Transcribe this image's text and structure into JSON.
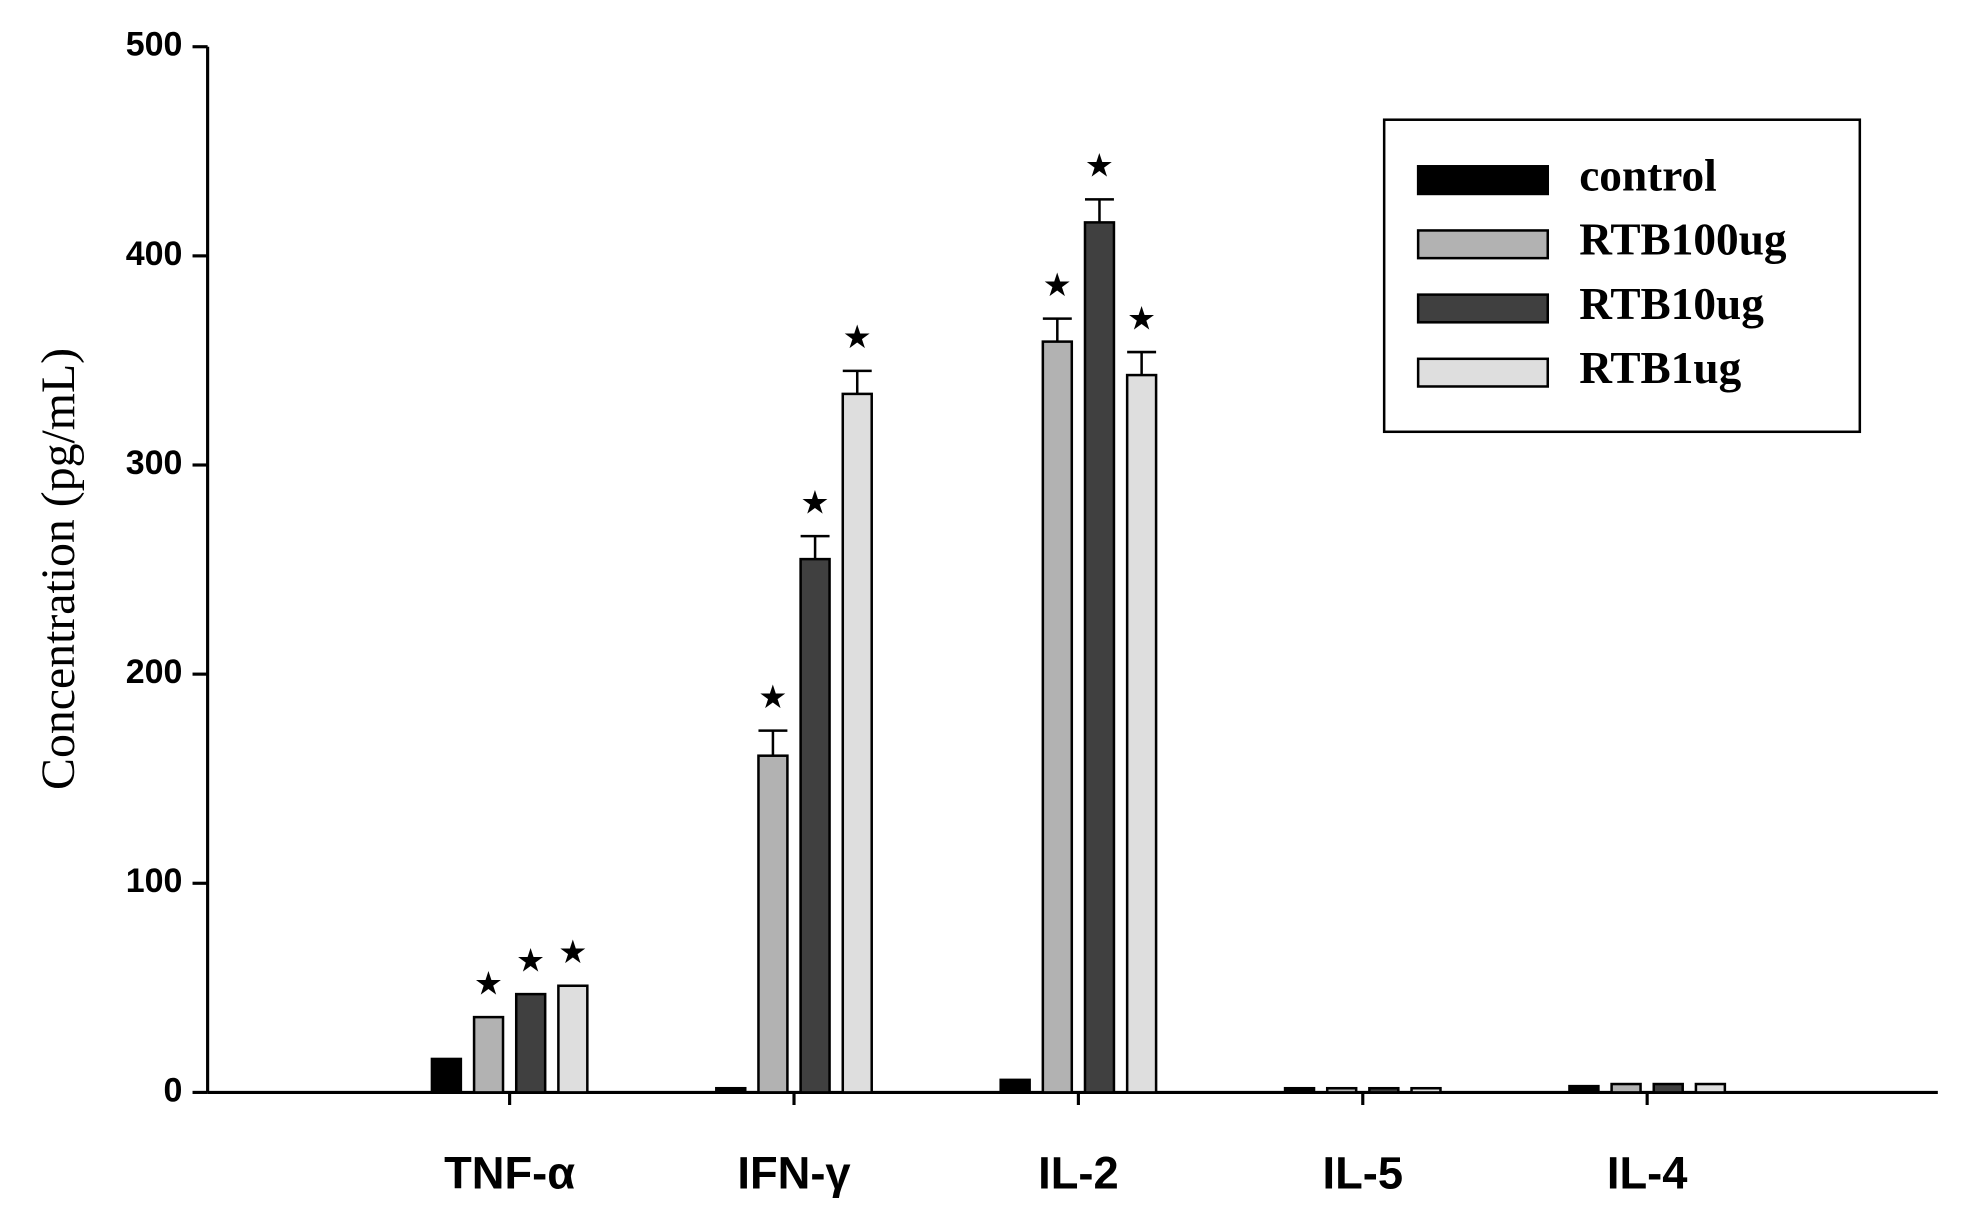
{
  "chart_data": {
    "type": "bar",
    "y_label": "Concentration (pg/mL)",
    "categories": [
      "TNF-α",
      "IFN-γ",
      "IL-2",
      "IL-5",
      "IL-4"
    ],
    "series": [
      {
        "name": "control",
        "color": "#000000",
        "values": [
          16,
          2,
          6,
          2,
          3
        ],
        "errors": [
          null,
          null,
          null,
          null,
          null
        ],
        "significance": [
          null,
          null,
          null,
          null,
          null
        ]
      },
      {
        "name": "RTB100ug",
        "color": "#b2b2b2",
        "values": [
          36,
          161,
          359,
          2,
          4
        ],
        "errors": [
          null,
          12,
          11,
          null,
          null
        ],
        "significance": [
          "★",
          "★",
          "★",
          null,
          null
        ]
      },
      {
        "name": "RTB10ug",
        "color": "#404040",
        "values": [
          47,
          255,
          416,
          2,
          4
        ],
        "errors": [
          null,
          11,
          11,
          null,
          null
        ],
        "significance": [
          "★",
          "★",
          "★",
          null,
          null
        ]
      },
      {
        "name": "RTB1ug",
        "color": "#dedede",
        "values": [
          51,
          334,
          343,
          2,
          4
        ],
        "errors": [
          null,
          11,
          11,
          null,
          null
        ],
        "significance": [
          "★",
          "★",
          "★",
          null,
          null
        ]
      }
    ],
    "ylim": [
      0,
      500
    ],
    "yticks": [
      0,
      100,
      200,
      300,
      400,
      500
    ],
    "legend": "upper right"
  }
}
